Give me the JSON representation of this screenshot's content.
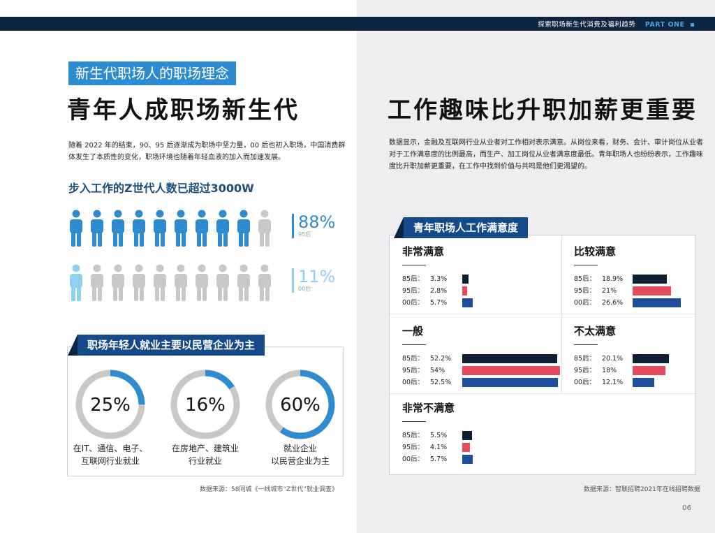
{
  "header": {
    "title": "探索职场新生代消费及福利趋势",
    "part": "PART ONE"
  },
  "left": {
    "subtitle": "新生代职场人的职场理念",
    "title": "青年人成职场新生代",
    "paragraph_line1": "随着 2022 年的结束，90、95 后逐渐成为职场中坚力量，00 后也初入职场，中国消费群",
    "paragraph_line2": "体发生了本质性的变化，职场环境也随着年轻血液的加入而加速发展。",
    "section_heading": "步入工作的Z世代人数已超过3000W",
    "stat95": {
      "percent": "88%",
      "label": "95后",
      "value": 88
    },
    "stat00": {
      "percent": "11%",
      "label": "00后",
      "value": 11
    },
    "employment": {
      "banner": "职场年轻人就业主要以民营企业为主",
      "items": [
        {
          "value": 25,
          "label": "25%",
          "caption1": "在IT、通信、电子、",
          "caption2": "互联网行业就业"
        },
        {
          "value": 16,
          "label": "16%",
          "caption1": "在房地产、建筑业",
          "caption2": "行业就业"
        },
        {
          "value": 60,
          "label": "60%",
          "caption1": "就业企业",
          "caption2": "以民营企业为主"
        }
      ]
    },
    "source": "数据来源：58同城《一线城市“Z世代”就业调查》"
  },
  "right": {
    "title": "工作趣味比升职加薪更重要",
    "paragraph_line1": "数据显示，金融及互联网行业从业者对工作相对表示满意。从岗位来看，财务、会计、审计岗位从业者",
    "paragraph_line2": "对于工作满意度的比例最高，而生产、加工岗位从业者满意度最低。青年职场人也纷纷表示，工作趣味",
    "paragraph_line3": "度比升职加薪更重要，在工作中找到价值与共鸣是他们更渴望的。",
    "source": "数据来源：智联招聘2021年在线招聘数据",
    "page_number": "06"
  },
  "colors": {
    "dark_navy": "#0d2540",
    "accent_blue": "#2f8bd0",
    "light_blue": "#8fd0f0",
    "gray": "#c8c8c8",
    "series_85": "#0f1f33",
    "series_95": "#e24c5c",
    "series_00": "#1f4f9c"
  },
  "chart_data": {
    "type": "bar",
    "title": "青年职场人工作满意度",
    "series_names": [
      "85后",
      "95后",
      "00后"
    ],
    "groups": [
      {
        "name": "非常满意",
        "values": [
          3.3,
          2.8,
          5.7
        ],
        "labels": [
          "3.3%",
          "2.8%",
          "5.7%"
        ]
      },
      {
        "name": "比较满意",
        "values": [
          18.9,
          21,
          26.6
        ],
        "labels": [
          "18.9%",
          "21%",
          "26.6%"
        ]
      },
      {
        "name": "一般",
        "values": [
          52.2,
          54,
          52.5
        ],
        "labels": [
          "52.2%",
          "54%",
          "52.5%"
        ]
      },
      {
        "name": "不太满意",
        "values": [
          20.1,
          18,
          12.1
        ],
        "labels": [
          "20.1%",
          "18%",
          "12.1%"
        ]
      },
      {
        "name": "非常不满意",
        "values": [
          5.5,
          4.1,
          5.7
        ],
        "labels": [
          "5.5%",
          "4.1%",
          "5.7%"
        ]
      }
    ]
  }
}
